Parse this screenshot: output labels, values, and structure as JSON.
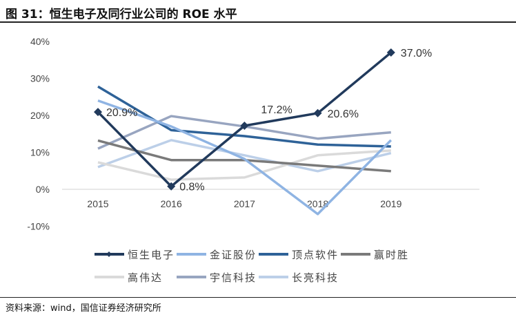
{
  "title": "图 31：恒生电子及同行业公司的 ROE 水平",
  "source": "资料来源：wind，国信证券经济研究所",
  "chart_data": {
    "type": "line",
    "categories": [
      "2015",
      "2016",
      "2017",
      "2018",
      "2019"
    ],
    "ylim": [
      -10,
      40
    ],
    "yticks": [
      "-10%",
      "0%",
      "10%",
      "20%",
      "30%",
      "40%"
    ],
    "grid": false,
    "legend": "bottom",
    "series": [
      {
        "name": "恒生电子",
        "values": [
          20.9,
          0.8,
          17.2,
          20.6,
          37.0
        ],
        "color": "#213a5c",
        "marker": "diamond",
        "labels": [
          "20.9%",
          "0.8%",
          "17.2%",
          "20.6%",
          "37.0%"
        ]
      },
      {
        "name": "金证股份",
        "values": [
          24.0,
          17.0,
          8.2,
          -6.7,
          13.3
        ],
        "color": "#8fb4e3"
      },
      {
        "name": "顶点软件",
        "values": [
          27.8,
          16.0,
          14.4,
          12.1,
          11.6
        ],
        "color": "#2e6298"
      },
      {
        "name": "赢时胜",
        "values": [
          13.2,
          7.9,
          7.9,
          6.4,
          4.9
        ],
        "color": "#7a7a7a"
      },
      {
        "name": "高伟达",
        "values": [
          7.3,
          2.6,
          3.2,
          9.2,
          10.5
        ],
        "color": "#dadada"
      },
      {
        "name": "宇信科技",
        "values": [
          11.0,
          19.8,
          17.0,
          13.7,
          15.4
        ],
        "color": "#98a5c0"
      },
      {
        "name": "长亮科技",
        "values": [
          6.0,
          13.3,
          9.2,
          4.9,
          9.8
        ],
        "color": "#bccfe8"
      }
    ]
  }
}
